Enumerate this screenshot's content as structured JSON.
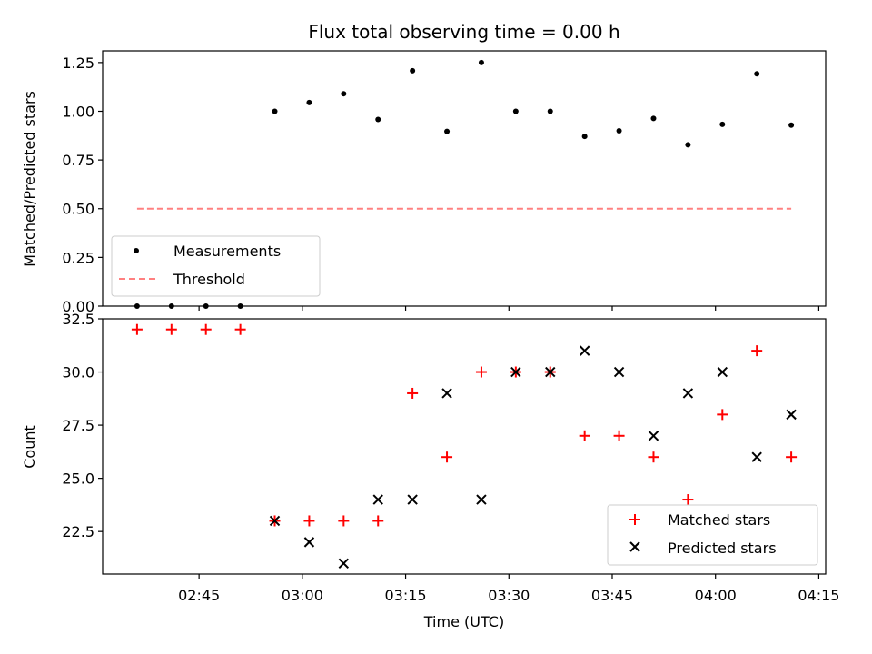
{
  "chart_data": [
    {
      "type": "scatter",
      "title": "Flux total observing time = 0.00 h",
      "xlabel": "",
      "ylabel": "Matched/Predicted stars",
      "ylim": [
        0,
        1.31
      ],
      "yticks": [
        "0.00",
        "0.25",
        "0.50",
        "0.75",
        "1.00",
        "1.25"
      ],
      "x": [
        "02:36",
        "02:41",
        "02:46",
        "02:51",
        "02:56",
        "03:01",
        "03:06",
        "03:11",
        "03:16",
        "03:21",
        "03:26",
        "03:31",
        "03:36",
        "03:41",
        "03:46",
        "03:51",
        "03:56",
        "04:01",
        "04:06",
        "04:11"
      ],
      "series": [
        {
          "name": "Measurements",
          "marker": "dot",
          "color": "#000000",
          "values": [
            0,
            0,
            0,
            0,
            1.0,
            1.045,
            1.09,
            0.958,
            1.208,
            0.897,
            1.25,
            1.0,
            1.0,
            0.871,
            0.9,
            0.963,
            0.828,
            0.933,
            1.192,
            0.929
          ]
        },
        {
          "name": "Threshold",
          "marker": "dashed-line",
          "color": "#ff8080",
          "x": [
            "02:36",
            "04:11"
          ],
          "values": [
            0.5,
            0.5
          ]
        }
      ],
      "legend": "lower-left"
    },
    {
      "type": "scatter",
      "title": "",
      "xlabel": "Time (UTC)",
      "ylabel": "Count",
      "ylim": [
        20.5,
        32.5
      ],
      "yticks": [
        "22.5",
        "25.0",
        "27.5",
        "30.0",
        "32.5"
      ],
      "xticks": [
        "02:45",
        "03:00",
        "03:15",
        "03:30",
        "03:45",
        "04:00",
        "04:15"
      ],
      "xlim": [
        "02:31",
        "04:16"
      ],
      "x": [
        "02:36",
        "02:41",
        "02:46",
        "02:51",
        "02:56",
        "03:01",
        "03:06",
        "03:11",
        "03:16",
        "03:21",
        "03:26",
        "03:31",
        "03:36",
        "03:41",
        "03:46",
        "03:51",
        "03:56",
        "04:01",
        "04:06",
        "04:11"
      ],
      "series": [
        {
          "name": "Matched stars",
          "marker": "plus",
          "color": "#ff0000",
          "values": [
            32,
            32,
            32,
            32,
            23,
            23,
            23,
            23,
            29,
            26,
            30,
            30,
            30,
            27,
            27,
            26,
            24,
            28,
            31,
            26
          ]
        },
        {
          "name": "Predicted stars",
          "marker": "x",
          "color": "#000000",
          "values": [
            null,
            null,
            null,
            null,
            23,
            22,
            21,
            24,
            24,
            29,
            24,
            30,
            30,
            31,
            30,
            27,
            29,
            30,
            26,
            28
          ]
        }
      ],
      "legend": "lower-right"
    }
  ]
}
